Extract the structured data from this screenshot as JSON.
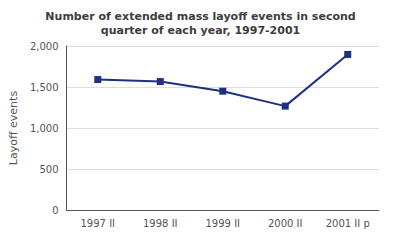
{
  "chart_data": {
    "type": "line",
    "title": "Number of extended mass layoff events in second\nquarter of each year, 1997-2001",
    "categories": [
      "1997 II",
      "1998 II",
      "1999 II",
      "2000 II",
      "2001 II p"
    ],
    "values": [
      1591,
      1566,
      1449,
      1267,
      1897
    ],
    "color": "#1e3080",
    "marker": "square",
    "y_label": "Layoff events",
    "ylim": [
      0,
      2000
    ],
    "yticks": [
      0,
      500,
      {
        "value": 1000,
        "label": "1,000"
      },
      {
        "value": 1500,
        "label": "1,500"
      },
      {
        "value": 2000,
        "label": "2,000"
      }
    ],
    "grid": true
  }
}
